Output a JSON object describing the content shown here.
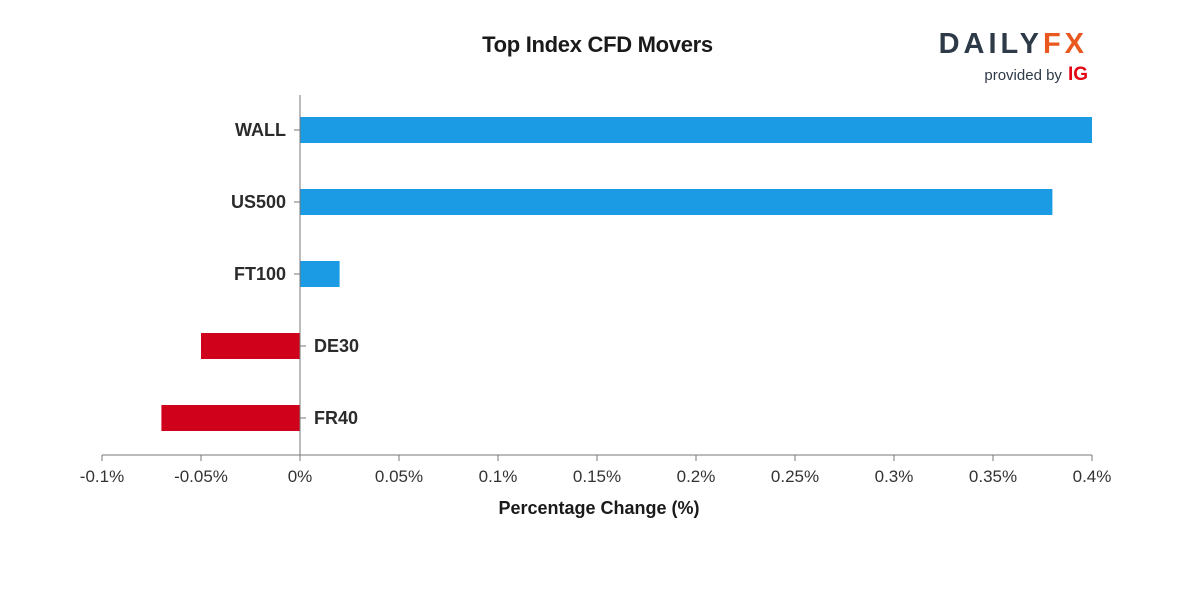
{
  "chart_data": {
    "type": "bar",
    "orientation": "horizontal",
    "title": "Top Index CFD Movers",
    "xlabel": "Percentage Change (%)",
    "ylabel": "",
    "categories": [
      "WALL",
      "US500",
      "FT100",
      "DE30",
      "FR40"
    ],
    "values": [
      0.4,
      0.38,
      0.02,
      -0.05,
      -0.07
    ],
    "xlim": [
      -0.1,
      0.4
    ],
    "xticks": [
      -0.1,
      -0.05,
      0,
      0.05,
      0.1,
      0.15,
      0.2,
      0.25,
      0.3,
      0.35,
      0.4
    ],
    "xtick_labels": [
      "-0.1%",
      "-0.05%",
      "0%",
      "0.05%",
      "0.1%",
      "0.15%",
      "0.2%",
      "0.25%",
      "0.3%",
      "0.35%",
      "0.4%"
    ],
    "grid": false,
    "colors": {
      "positive": "#1b9be4",
      "negative": "#d0021b"
    }
  },
  "logo": {
    "brand_part_a": "DAILY",
    "brand_part_b": "FX",
    "provided_by": "provided by",
    "ig": "IG"
  }
}
